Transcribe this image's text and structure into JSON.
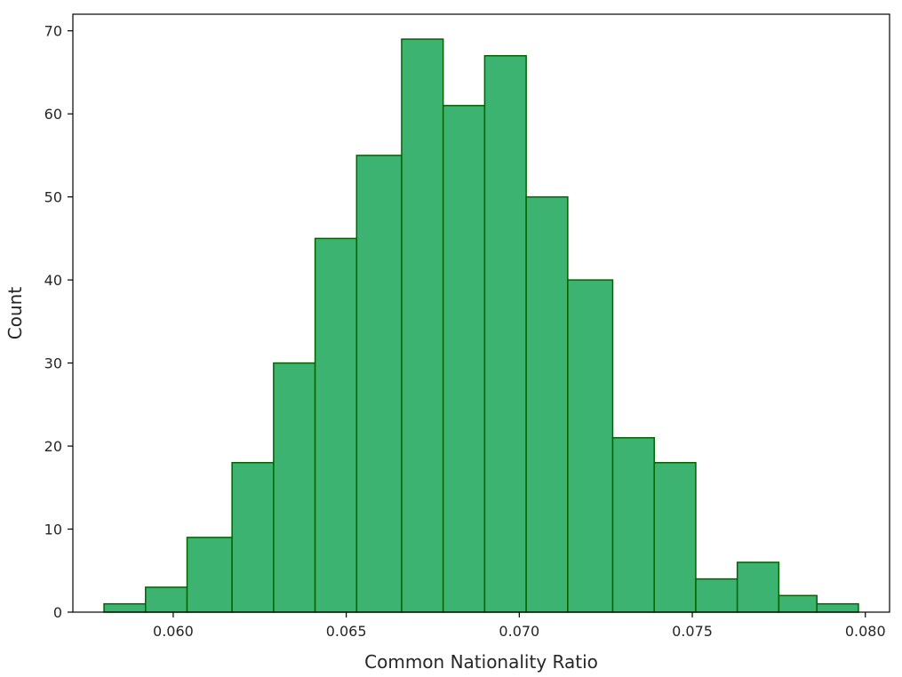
{
  "chart_data": {
    "type": "bar",
    "subtype": "histogram",
    "title": "",
    "xlabel": "Common Nationality Ratio",
    "ylabel": "Count",
    "bin_edges": [
      0.058,
      0.0592,
      0.0604,
      0.0617,
      0.0629,
      0.0641,
      0.0653,
      0.0666,
      0.0678,
      0.069,
      0.0702,
      0.0714,
      0.0727,
      0.0739,
      0.0751,
      0.0763,
      0.0775,
      0.0786,
      0.0798
    ],
    "values": [
      1,
      3,
      9,
      18,
      30,
      45,
      55,
      69,
      61,
      67,
      50,
      40,
      21,
      18,
      4,
      6,
      2,
      1
    ],
    "xlim": [
      0.0571,
      0.0807
    ],
    "ylim": [
      0,
      72
    ],
    "xticks": [
      0.06,
      0.065,
      0.07,
      0.075,
      0.08
    ],
    "xtick_labels": [
      "0.060",
      "0.065",
      "0.070",
      "0.075",
      "0.080"
    ],
    "yticks": [
      0,
      10,
      20,
      30,
      40,
      50,
      60,
      70
    ],
    "ytick_labels": [
      "0",
      "10",
      "20",
      "30",
      "40",
      "50",
      "60",
      "70"
    ],
    "grid": false,
    "legend": "none",
    "colors": {
      "bar_fill": "#3cb371",
      "bar_edge": "#006400",
      "axis": "#000000",
      "text": "#262626"
    }
  }
}
